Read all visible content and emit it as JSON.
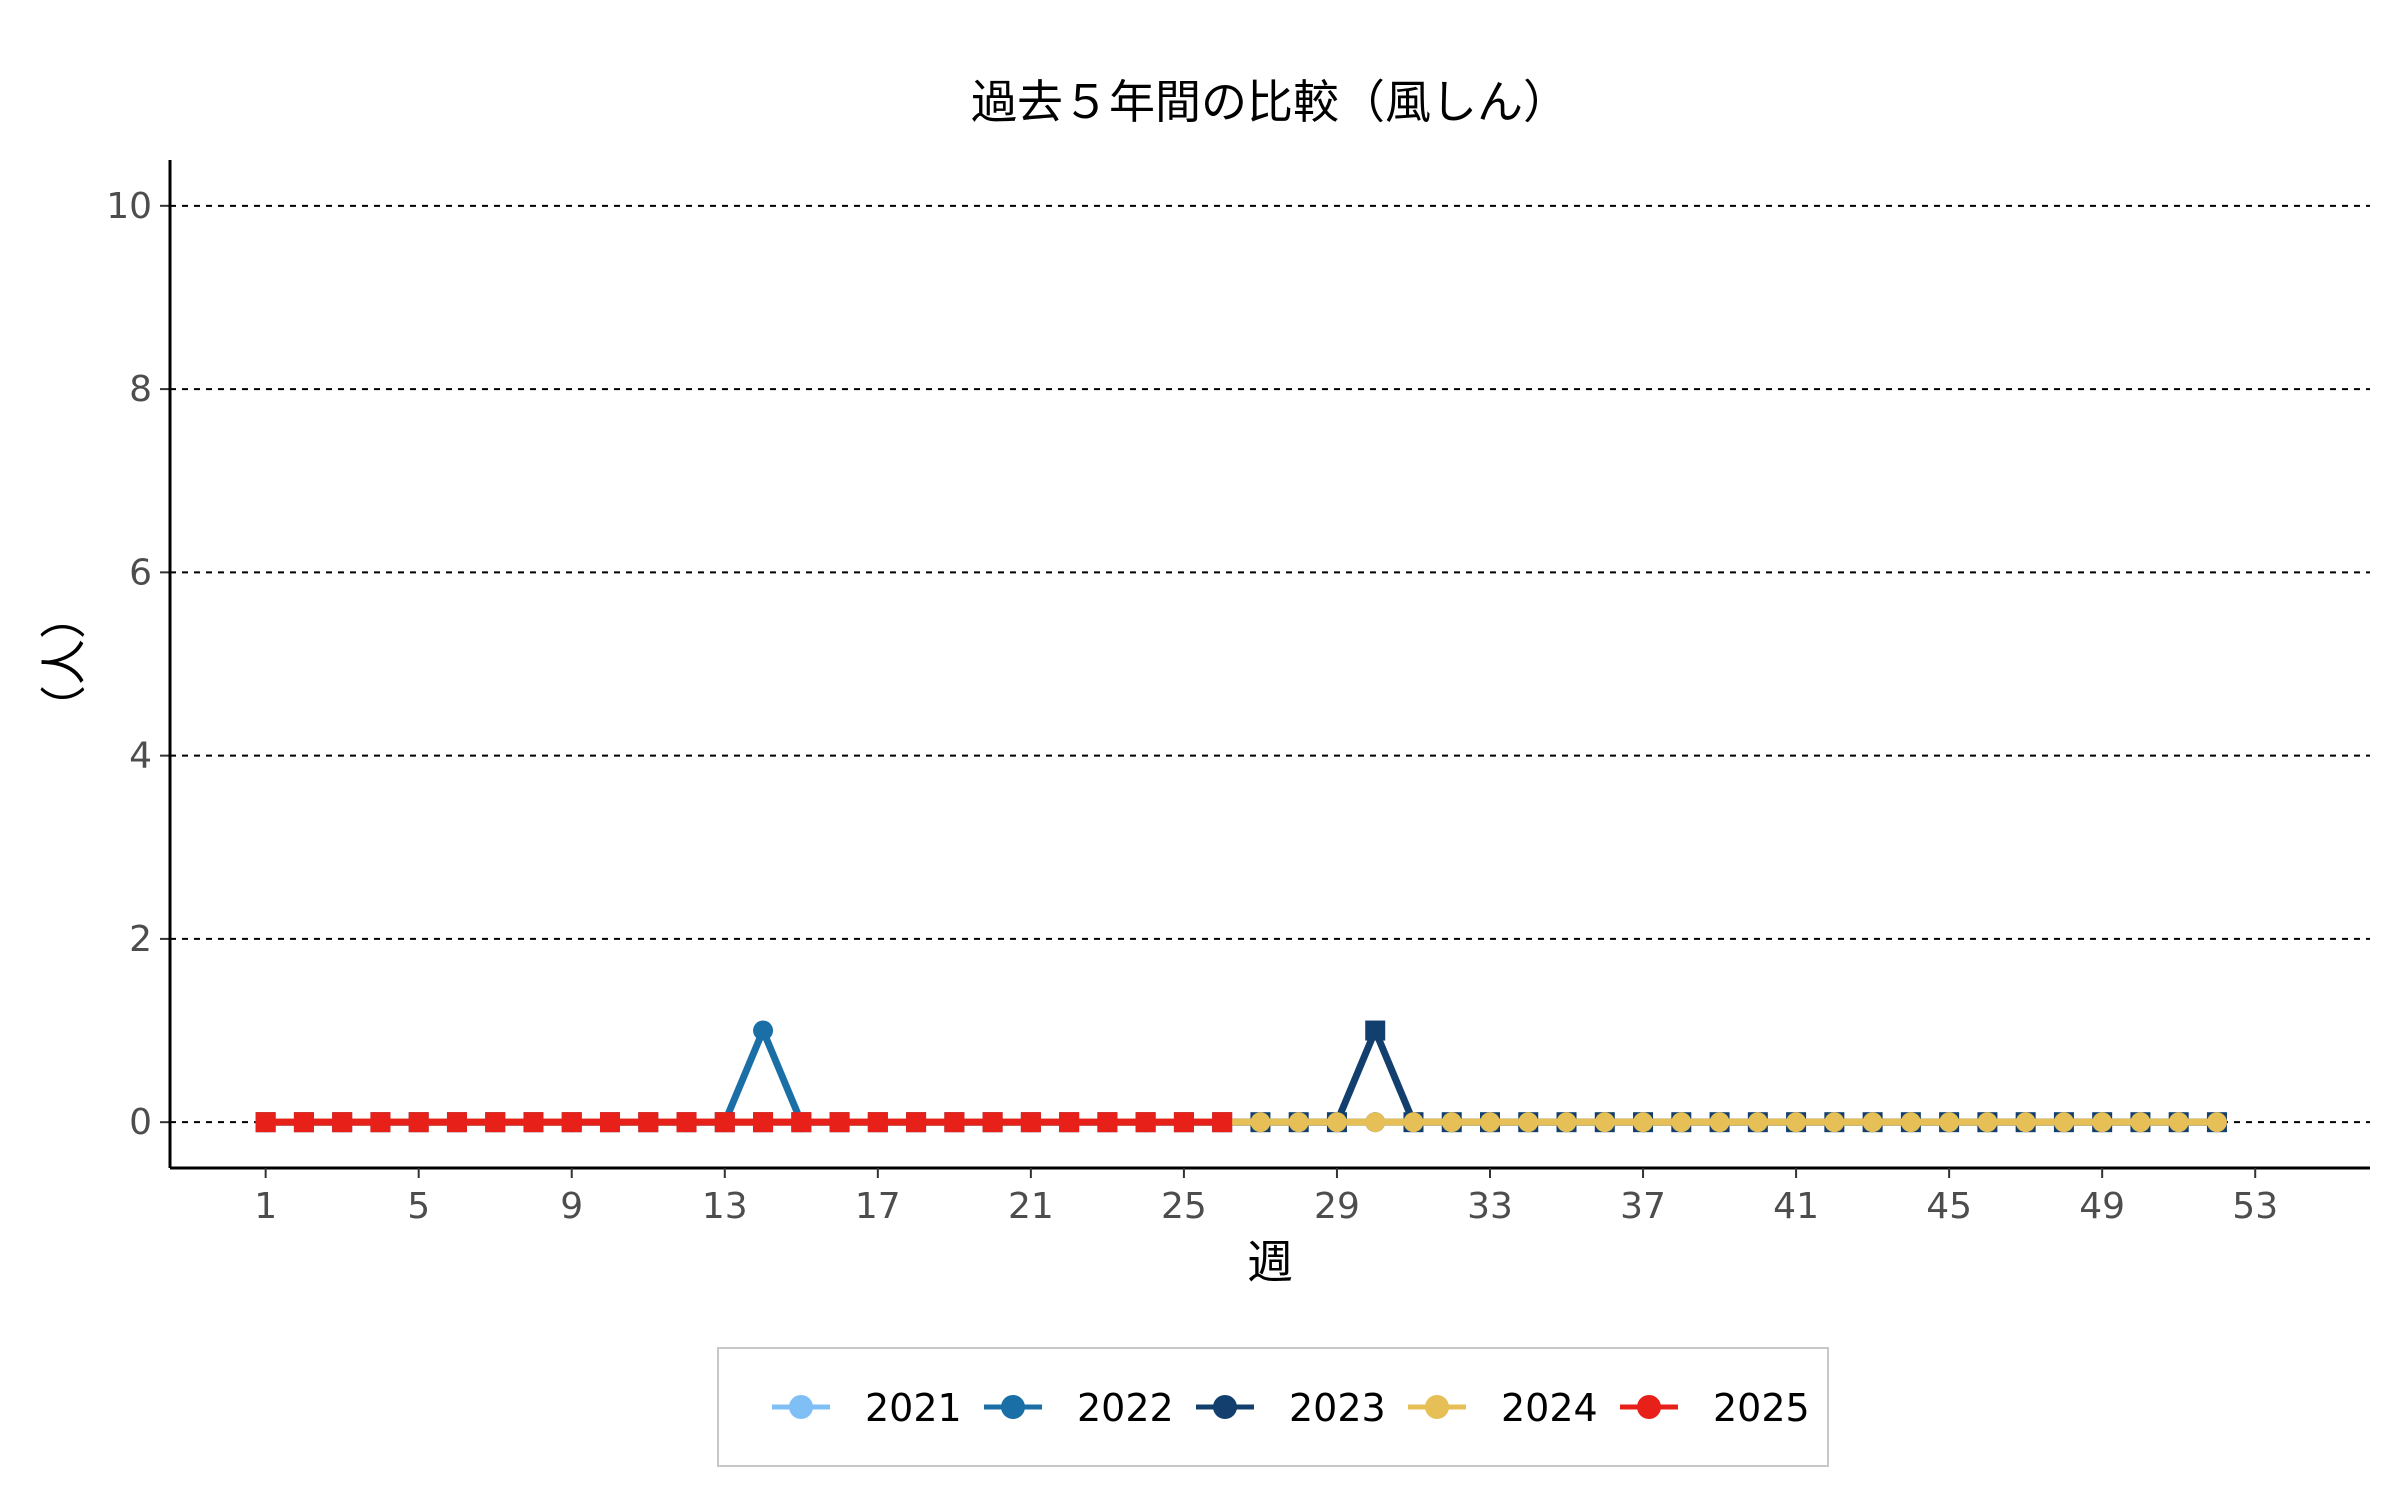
{
  "chart_data": {
    "type": "line",
    "title": "過去５年間の比較（風しん）",
    "xlabel": "週",
    "ylabel": "（人）",
    "xlim": [
      -1.5,
      56
    ],
    "ylim": [
      -0.5,
      10.5
    ],
    "x_ticks": [
      1,
      5,
      9,
      13,
      17,
      21,
      25,
      29,
      33,
      37,
      41,
      45,
      49,
      53
    ],
    "y_ticks": [
      0,
      2,
      4,
      6,
      8,
      10
    ],
    "grid": "horizontal dashed",
    "legend_position": "bottom",
    "series": [
      {
        "name": "2021",
        "color": "#7fbff5",
        "marker": "circle",
        "values": [
          0,
          0,
          0,
          0,
          0,
          0,
          0,
          0,
          0,
          0,
          0,
          0,
          0,
          0,
          0,
          0,
          0,
          0,
          0,
          0,
          0,
          0,
          0,
          0,
          0,
          0,
          0,
          0,
          0,
          0,
          0,
          0,
          0,
          0,
          0,
          0,
          0,
          0,
          0,
          0,
          0,
          0,
          0,
          0,
          0,
          0,
          0,
          0,
          0,
          0,
          0,
          0
        ]
      },
      {
        "name": "2022",
        "color": "#1a6fa6",
        "marker": "circle",
        "values": [
          0,
          0,
          0,
          0,
          0,
          0,
          0,
          0,
          0,
          0,
          0,
          0,
          0,
          1,
          0,
          0,
          0,
          0,
          0,
          0,
          0,
          0,
          0,
          0,
          0,
          0,
          0,
          0,
          0,
          0,
          0,
          0,
          0,
          0,
          0,
          0,
          0,
          0,
          0,
          0,
          0,
          0,
          0,
          0,
          0,
          0,
          0,
          0,
          0,
          0,
          0,
          0
        ]
      },
      {
        "name": "2023",
        "color": "#123f6e",
        "marker": "square",
        "values": [
          0,
          0,
          0,
          0,
          0,
          0,
          0,
          0,
          0,
          0,
          0,
          0,
          0,
          0,
          0,
          0,
          0,
          0,
          0,
          0,
          0,
          0,
          0,
          0,
          0,
          0,
          0,
          0,
          0,
          1,
          0,
          0,
          0,
          0,
          0,
          0,
          0,
          0,
          0,
          0,
          0,
          0,
          0,
          0,
          0,
          0,
          0,
          0,
          0,
          0,
          0,
          0
        ]
      },
      {
        "name": "2024",
        "color": "#e6bf57",
        "marker": "circle",
        "values": [
          0,
          0,
          0,
          0,
          0,
          0,
          0,
          0,
          0,
          0,
          0,
          0,
          0,
          0,
          0,
          0,
          0,
          0,
          0,
          0,
          0,
          0,
          0,
          0,
          0,
          0,
          0,
          0,
          0,
          0,
          0,
          0,
          0,
          0,
          0,
          0,
          0,
          0,
          0,
          0,
          0,
          0,
          0,
          0,
          0,
          0,
          0,
          0,
          0,
          0,
          0,
          0
        ]
      },
      {
        "name": "2025",
        "color": "#e8201a",
        "marker": "square",
        "values": [
          0,
          0,
          0,
          0,
          0,
          0,
          0,
          0,
          0,
          0,
          0,
          0,
          0,
          0,
          0,
          0,
          0,
          0,
          0,
          0,
          0,
          0,
          0,
          0,
          0,
          0
        ]
      }
    ]
  }
}
